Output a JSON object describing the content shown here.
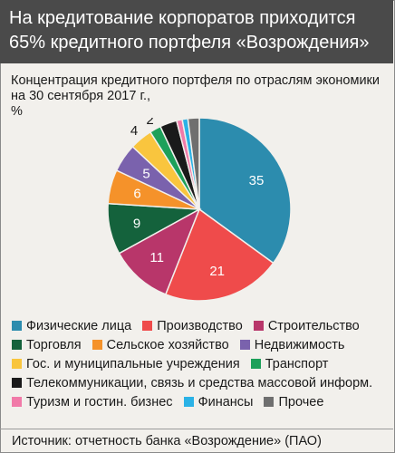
{
  "header": {
    "title_line1": "На кредитование корпоратов приходится",
    "title_line2": "65% кредитного портфеля «Возрождения»"
  },
  "chart_data": {
    "type": "pie",
    "subtitle_line1": "Концентрация кредитного портфеля по отраслям экономики",
    "subtitle_line2": "на 30 сентября 2017 г.,",
    "subtitle_line3": "%",
    "categories": [
      "Физические лица",
      "Производство",
      "Строительство",
      "Торговля",
      "Сельское хозяйство",
      "Недвижимость",
      "Гос. и муниципальные учреждения",
      "Транспорт",
      "Телекоммуникации, связь и средства массовой информ.",
      "Туризм и гостин. бизнес",
      "Финансы",
      "Прочее"
    ],
    "values": [
      35,
      21,
      11,
      9,
      6,
      5,
      4,
      2,
      3,
      1,
      1,
      2
    ],
    "labels": [
      "35",
      "21",
      "11",
      "9",
      "6",
      "5",
      "4",
      "2",
      "3",
      "1",
      "1",
      "2"
    ],
    "colors": [
      "#2c8cae",
      "#ef4b4b",
      "#b8366a",
      "#14623c",
      "#f5922a",
      "#7a62ad",
      "#f9c53e",
      "#1da05a",
      "#1a1a1a",
      "#f17aa8",
      "#2bb2e6",
      "#6f6f6f"
    ],
    "legend_placement": "bottom"
  },
  "source": "Источник: отчетность банка «Возрождение» (ПАО)"
}
